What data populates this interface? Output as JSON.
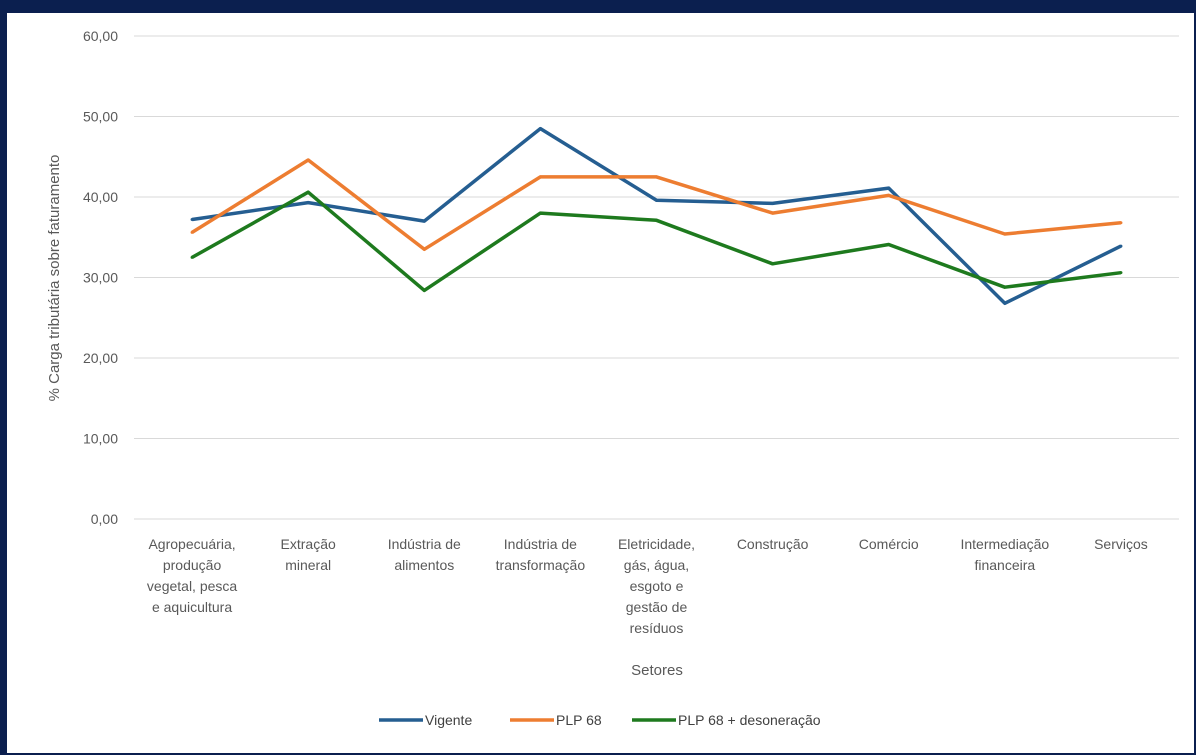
{
  "chart_data": {
    "type": "line",
    "xlabel": "Setores",
    "ylabel": "% Carga tributária sobre faturamento",
    "ylim": [
      0,
      60
    ],
    "yticks": [
      "0,00",
      "10,00",
      "20,00",
      "30,00",
      "40,00",
      "50,00",
      "60,00"
    ],
    "grid": true,
    "legend_position": "bottom",
    "categories": [
      [
        "Agropecuária,",
        "produção",
        "vegetal, pesca",
        "e aquicultura"
      ],
      [
        "Extração",
        "mineral"
      ],
      [
        "Indústria de",
        "alimentos"
      ],
      [
        "Indústria de",
        "transformação"
      ],
      [
        "Eletricidade,",
        "gás, água,",
        "esgoto e",
        "gestão de",
        "resíduos"
      ],
      [
        "Construção"
      ],
      [
        "Comércio"
      ],
      [
        "Intermediação",
        "financeira"
      ],
      [
        "Serviços"
      ]
    ],
    "series": [
      {
        "name": "Vigente",
        "color": "#255e91",
        "values": [
          37.2,
          39.3,
          37.0,
          48.5,
          39.6,
          39.2,
          41.1,
          26.8,
          33.9
        ]
      },
      {
        "name": "PLP 68",
        "color": "#ed7d31",
        "values": [
          35.6,
          44.6,
          33.5,
          42.5,
          42.5,
          38.0,
          40.2,
          35.4,
          36.8
        ]
      },
      {
        "name": "PLP 68 + desoneração",
        "color": "#1e7a1e",
        "values": [
          32.5,
          40.6,
          28.4,
          38.0,
          37.1,
          31.7,
          34.1,
          28.8,
          30.6
        ]
      }
    ]
  }
}
